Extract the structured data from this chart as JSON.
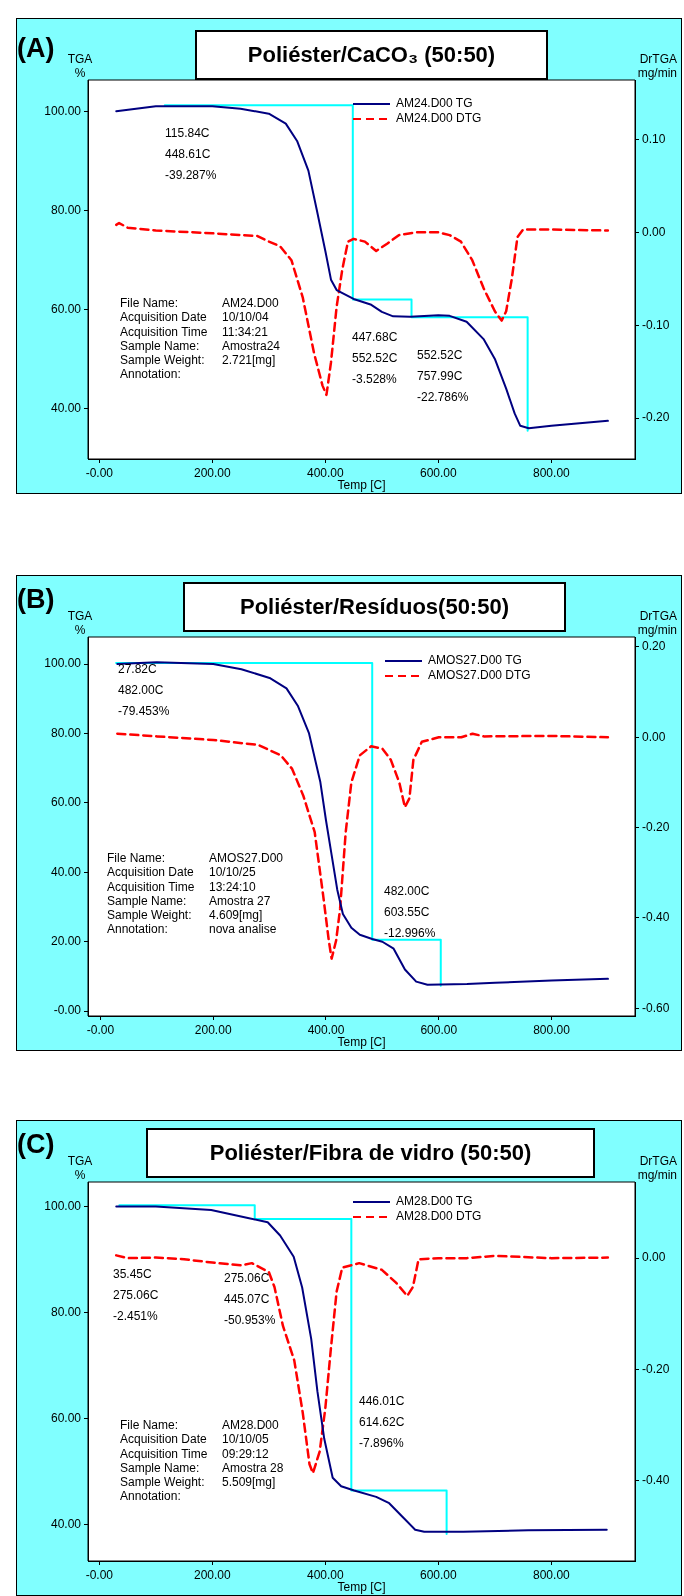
{
  "chart_data": [
    {
      "type": "line",
      "title": "Poliéster/CaCO₃ (50:50)",
      "subtitle": "(A)",
      "xlabel": "Temp [C]",
      "ylabel": "TGA %",
      "y2label": "DrTGA mg/min",
      "legend": "top right",
      "xlim": [
        -20,
        948
      ],
      "xticks": [
        {
          "value": 0,
          "label": "-0.00"
        },
        {
          "value": 200,
          "label": "200.00"
        },
        {
          "value": 400,
          "label": "400.00"
        },
        {
          "value": 600,
          "label": "600.00"
        },
        {
          "value": 800,
          "label": "800.00"
        }
      ],
      "ylim": [
        29.8,
        106.3
      ],
      "yticks": [
        {
          "value": 40,
          "label": "40.00"
        },
        {
          "value": 60,
          "label": "60.00"
        },
        {
          "value": 80,
          "label": "80.00"
        },
        {
          "value": 100,
          "label": "100.00"
        }
      ],
      "y2lim": [
        -0.244,
        0.164
      ],
      "y2ticks": [
        {
          "value": -0.2,
          "label": "-0.20"
        },
        {
          "value": -0.1,
          "label": "-0.10"
        },
        {
          "value": 0,
          "label": "0.00"
        },
        {
          "value": 0.1,
          "label": "0.10"
        }
      ],
      "series": [
        {
          "name": "AM24.D00 TG",
          "color": "#000080",
          "line_style": "solid",
          "x": [
            30,
            100,
            200,
            250,
            300,
            330,
            350,
            370,
            385,
            400,
            410,
            420,
            450,
            480,
            500,
            520,
            550,
            600,
            620,
            650,
            680,
            700,
            720,
            735,
            745,
            760,
            800,
            850,
            900
          ],
          "values": [
            100,
            101,
            101,
            100.5,
            99.5,
            97.5,
            94,
            88,
            80,
            71.8,
            66,
            63.9,
            62.1,
            61,
            59.5,
            58.6,
            58.5,
            58.8,
            58.7,
            57.5,
            54,
            50,
            44,
            39,
            36.5,
            36,
            36.5,
            37,
            37.5
          ]
        },
        {
          "name": "AM24.D00 DTG",
          "color": "#ff0000",
          "line_style": "dashed",
          "axis": "y2",
          "x": [
            30,
            35,
            50,
            100,
            200,
            280,
            300,
            320,
            340,
            360,
            380,
            395,
            402,
            410,
            420,
            430,
            440,
            450,
            470,
            490,
            510,
            530,
            560,
            600,
            620,
            640,
            660,
            680,
            700,
            712,
            720,
            730,
            740,
            750,
            800,
            900
          ],
          "values": [
            0.008,
            0.01,
            0.005,
            0.002,
            -0.001,
            -0.004,
            -0.01,
            -0.015,
            -0.03,
            -0.07,
            -0.13,
            -0.165,
            -0.175,
            -0.14,
            -0.08,
            -0.04,
            -0.01,
            -0.007,
            -0.01,
            -0.02,
            -0.012,
            -0.003,
            0,
            0,
            -0.003,
            -0.01,
            -0.03,
            -0.06,
            -0.085,
            -0.095,
            -0.085,
            -0.05,
            -0.005,
            0.003,
            0.003,
            0.002
          ]
        },
        {
          "color": "#00ffff",
          "line_style": "solid",
          "x": [
            115.84,
            448.61,
            448.61,
            552.52,
            552.52,
            757.99,
            757.99
          ],
          "values": [
            101.2,
            101.2,
            62,
            62,
            58.4,
            58.4,
            35.5
          ]
        }
      ],
      "annotations": [
        "115.84C",
        "448.61C",
        "-39.287%",
        "447.68C",
        "552.52C",
        "-3.528%",
        "552.52C",
        "757.99C",
        "-22.786%",
        "File Name:",
        "AM24.D00",
        "Acquisition Date",
        "10/10/04",
        "Acquisition Time",
        "11:34:21",
        "Sample Name:",
        "Amostra24",
        "Sample Weight:",
        "2.721[mg]",
        "Annotation:"
      ]
    },
    {
      "type": "line",
      "title": "Poliéster/Resíduos(50:50)",
      "subtitle": "(B)",
      "xlabel": "Temp [C]",
      "ylabel": "TGA %",
      "y2label": "DrTGA mg/min",
      "legend": "top right",
      "xlim": [
        -22,
        948
      ],
      "xticks": [
        {
          "value": 0,
          "label": "-0.00"
        },
        {
          "value": 200,
          "label": "200.00"
        },
        {
          "value": 400,
          "label": "400.00"
        },
        {
          "value": 600,
          "label": "600.00"
        },
        {
          "value": 800,
          "label": "800.00"
        }
      ],
      "ylim": [
        -1.4,
        107.8
      ],
      "yticks": [
        {
          "value": 0,
          "label": "-0.00"
        },
        {
          "value": 20,
          "label": "20.00"
        },
        {
          "value": 40,
          "label": "40.00"
        },
        {
          "value": 60,
          "label": "60.00"
        },
        {
          "value": 80,
          "label": "80.00"
        },
        {
          "value": 100,
          "label": "100.00"
        }
      ],
      "y2lim": [
        -0.617,
        0.222
      ],
      "y2ticks": [
        {
          "value": -0.6,
          "label": "-0.60"
        },
        {
          "value": -0.4,
          "label": "-0.40"
        },
        {
          "value": -0.2,
          "label": "-0.20"
        },
        {
          "value": 0,
          "label": "0.00"
        },
        {
          "value": 0.2,
          "label": "0.20"
        }
      ],
      "series": [
        {
          "name": "AMOS27.D00 TG",
          "color": "#000080",
          "line_style": "solid",
          "x": [
            30,
            100,
            200,
            250,
            300,
            330,
            350,
            370,
            390,
            400,
            410,
            420,
            430,
            445,
            460,
            482,
            500,
            520,
            540,
            560,
            580,
            650,
            700,
            800,
            900
          ],
          "values": [
            100,
            100.5,
            100,
            98.5,
            96,
            93,
            88,
            80,
            66,
            55,
            45,
            35,
            28,
            24,
            22,
            20.8,
            20,
            18,
            12,
            8.5,
            7.6,
            7.8,
            8.2,
            8.8,
            9.3
          ]
        },
        {
          "name": "AMOS27.D00 DTG",
          "color": "#ff0000",
          "line_style": "dashed",
          "axis": "y2",
          "x": [
            30,
            100,
            200,
            280,
            320,
            340,
            360,
            380,
            395,
            405,
            410,
            418,
            425,
            435,
            445,
            460,
            480,
            500,
            515,
            530,
            540,
            548,
            555,
            570,
            600,
            640,
            660,
            680,
            800,
            900
          ],
          "values": [
            0.008,
            0.002,
            -0.006,
            -0.017,
            -0.04,
            -0.07,
            -0.13,
            -0.21,
            -0.35,
            -0.45,
            -0.49,
            -0.45,
            -0.38,
            -0.21,
            -0.1,
            -0.04,
            -0.02,
            -0.025,
            -0.05,
            -0.1,
            -0.155,
            -0.135,
            -0.05,
            -0.01,
            0,
            0,
            0.008,
            0.002,
            0.003,
            0
          ]
        },
        {
          "color": "#00ffff",
          "line_style": "solid",
          "x": [
            27.82,
            482,
            482,
            603.55,
            603.55
          ],
          "values": [
            100.3,
            100.3,
            20.6,
            20.6,
            7.3
          ]
        }
      ],
      "annotations": [
        "27.82C",
        "482.00C",
        "-79.453%",
        "482.00C",
        "603.55C",
        "-12.996%",
        "File Name:",
        "AMOS27.D00",
        "Acquisition Date",
        "10/10/25",
        "Acquisition Time",
        "13:24:10",
        "Sample Name:",
        "Amostra 27",
        "Sample Weight:",
        "4.609[mg]",
        "Annotation:",
        "nova analise"
      ]
    },
    {
      "type": "line",
      "title": "Poliéster/Fibra de vidro (50:50)",
      "subtitle": "(C)",
      "xlabel": "Temp [C]",
      "ylabel": "TGA %",
      "y2label": "DrTGA mg/min",
      "legend": "top right",
      "xlim": [
        -20,
        948
      ],
      "xticks": [
        {
          "value": 0,
          "label": "-0.00"
        },
        {
          "value": 200,
          "label": "200.00"
        },
        {
          "value": 400,
          "label": "400.00"
        },
        {
          "value": 600,
          "label": "600.00"
        },
        {
          "value": 800,
          "label": "800.00"
        }
      ],
      "ylim": [
        33.1,
        104.6
      ],
      "yticks": [
        {
          "value": 40,
          "label": "40.00"
        },
        {
          "value": 60,
          "label": "60.00"
        },
        {
          "value": 80,
          "label": "80.00"
        },
        {
          "value": 100,
          "label": "100.00"
        }
      ],
      "y2lim": [
        -0.545,
        0.137
      ],
      "y2ticks": [
        {
          "value": -0.4,
          "label": "-0.40"
        },
        {
          "value": -0.2,
          "label": "-0.20"
        },
        {
          "value": 0,
          "label": "0.00"
        }
      ],
      "series": [
        {
          "name": "AM28.D00 TG",
          "color": "#000080",
          "line_style": "solid",
          "x": [
            30,
            100,
            198,
            263,
            298,
            320,
            344,
            359,
            375,
            386,
            398,
            413,
            428,
            451,
            490,
            513,
            536,
            559,
            575,
            644,
            759,
            898
          ],
          "values": [
            100,
            100,
            99.3,
            97.8,
            97,
            94.5,
            90.5,
            84.7,
            75,
            65.1,
            56.2,
            48.8,
            47.2,
            46.4,
            45.2,
            44,
            41.5,
            39,
            38.6,
            38.6,
            38.9,
            39
          ]
        },
        {
          "name": "AM28.D00 DTG",
          "color": "#ff0000",
          "line_style": "dashed",
          "axis": "y2",
          "x": [
            30,
            50,
            100,
            150,
            200,
            250,
            270,
            300,
            310,
            325,
            345,
            360,
            372,
            378,
            390,
            400,
            410,
            420,
            430,
            460,
            500,
            525,
            545,
            555,
            565,
            600,
            650,
            700,
            800,
            900
          ],
          "values": [
            0.005,
            0,
            0.001,
            -0.002,
            -0.008,
            -0.013,
            -0.009,
            -0.025,
            -0.052,
            -0.122,
            -0.184,
            -0.278,
            -0.371,
            -0.387,
            -0.348,
            -0.27,
            -0.161,
            -0.06,
            -0.017,
            -0.009,
            -0.021,
            -0.044,
            -0.068,
            -0.052,
            -0.002,
            0,
            0,
            0.004,
            0,
            0.001
          ]
        },
        {
          "color": "#00ffff",
          "line_style": "solid",
          "x": [
            35.45,
            275.06,
            275.06,
            446.01,
            446.01,
            614.62,
            614.62
          ],
          "values": [
            100.2,
            100.2,
            97.6,
            97.6,
            46.4,
            46.4,
            38.2
          ]
        }
      ],
      "annotations": [
        "35.45C",
        "275.06C",
        "-2.451%",
        "275.06C",
        "445.07C",
        "-50.953%",
        "446.01C",
        "614.62C",
        "-7.896%",
        "File Name:",
        "AM28.D00",
        "Acquisition Date",
        "10/10/05",
        "Acquisition Time",
        "09:29:12",
        "Sample Name:",
        "Amostra 28",
        "Sample Weight:",
        "5.509[mg]",
        "Annotation:"
      ]
    }
  ]
}
